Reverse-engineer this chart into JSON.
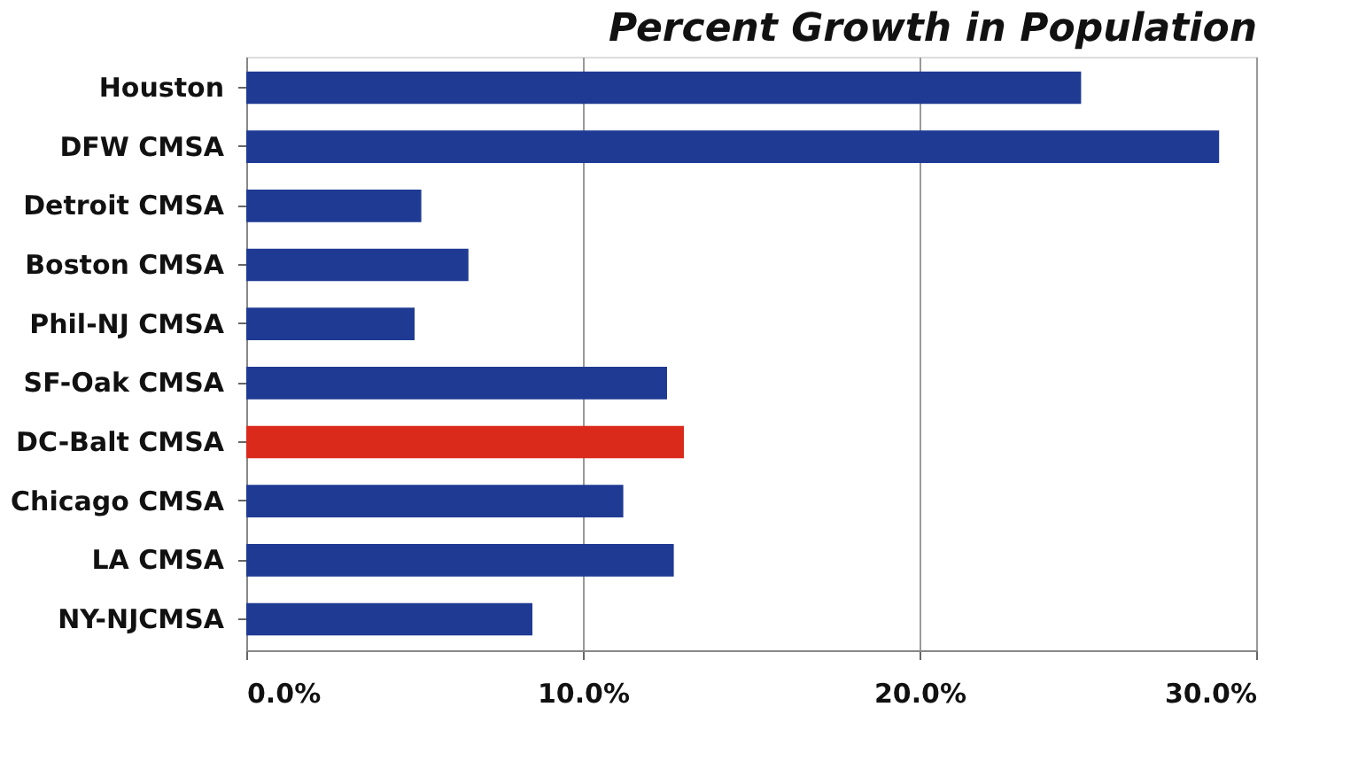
{
  "chart_data": {
    "type": "bar",
    "orientation": "horizontal",
    "title": "Percent Growth in Population",
    "categories": [
      "Houston",
      "DFW CMSA",
      "Detroit CMSA",
      "Boston CMSA",
      "Phil-NJ CMSA",
      "SF-Oak CMSA",
      "DC-Balt CMSA",
      "Chicago CMSA",
      "LA CMSA",
      "NY-NJCMSA"
    ],
    "values": [
      24.8,
      28.9,
      5.2,
      6.6,
      5.0,
      12.5,
      13.0,
      11.2,
      12.7,
      8.5
    ],
    "colors": [
      "#1f3a93",
      "#1f3a93",
      "#1f3a93",
      "#1f3a93",
      "#1f3a93",
      "#1f3a93",
      "#d92a1c",
      "#1f3a93",
      "#1f3a93",
      "#1f3a93"
    ],
    "xlim": [
      0,
      30
    ],
    "xticks": [
      {
        "value": 0,
        "label": "0.0%"
      },
      {
        "value": 10,
        "label": "10.0%"
      },
      {
        "value": 20,
        "label": "20.0%"
      },
      {
        "value": 30,
        "label": "30.0%"
      }
    ],
    "grid": "x"
  }
}
